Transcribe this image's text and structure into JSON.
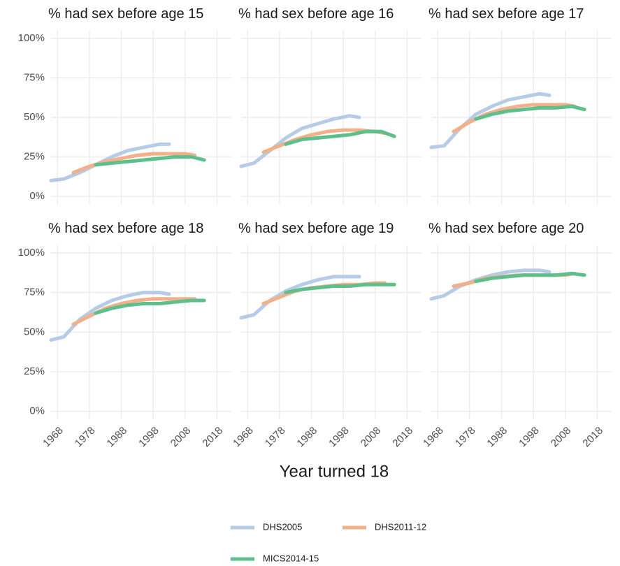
{
  "x_label": "Year turned 18",
  "chart_data": [
    {
      "type": "line",
      "title": "% had sex before age 15",
      "xlim": [
        1966,
        2022.5
      ],
      "xticks": [
        1968,
        1978,
        1988,
        1998,
        2008,
        2018
      ],
      "ylim": [
        -5,
        105
      ],
      "yticks": [
        {
          "value": 0,
          "label": "0%"
        },
        {
          "value": 25,
          "label": "25%"
        },
        {
          "value": 50,
          "label": "50%"
        },
        {
          "value": 75,
          "label": "75%"
        },
        {
          "value": 100,
          "label": "100%"
        }
      ],
      "grid": true,
      "series": [
        {
          "name": "DHS2005",
          "color": "#b5cbe6",
          "x": [
            1966,
            1970,
            1975,
            1980,
            1985,
            1990,
            1995,
            2000,
            2003
          ],
          "values": [
            10,
            11,
            15,
            20,
            25,
            29,
            31,
            33,
            33
          ]
        },
        {
          "name": "DHS2011-12",
          "color": "#f2b08a",
          "x": [
            1973,
            1978,
            1983,
            1988,
            1993,
            1998,
            2003,
            2008,
            2011
          ],
          "values": [
            15,
            19,
            22,
            24,
            26,
            27,
            27,
            27,
            26
          ]
        },
        {
          "name": "MICS2014-15",
          "color": "#5cbf8c",
          "x": [
            1980,
            1985,
            1990,
            1995,
            2000,
            2005,
            2010,
            2014
          ],
          "values": [
            20,
            21,
            22,
            23,
            24,
            25,
            25,
            23
          ]
        }
      ]
    },
    {
      "type": "line",
      "title": "% had sex before age 16",
      "xlim": [
        1966,
        2022.5
      ],
      "xticks": [
        1968,
        1978,
        1988,
        1998,
        2008,
        2018
      ],
      "ylim": [
        -5,
        105
      ],
      "yticks": [
        0,
        25,
        50,
        75,
        100
      ],
      "grid": true,
      "series": [
        {
          "name": "DHS2005",
          "color": "#b5cbe6",
          "x": [
            1966,
            1970,
            1975,
            1980,
            1985,
            1990,
            1995,
            2000,
            2003
          ],
          "values": [
            19,
            21,
            29,
            37,
            43,
            46,
            49,
            51,
            50
          ]
        },
        {
          "name": "DHS2011-12",
          "color": "#f2b08a",
          "x": [
            1973,
            1978,
            1983,
            1988,
            1993,
            1998,
            2003,
            2008,
            2011
          ],
          "values": [
            28,
            32,
            36,
            39,
            41,
            42,
            42,
            41,
            40
          ]
        },
        {
          "name": "MICS2014-15",
          "color": "#5cbf8c",
          "x": [
            1980,
            1985,
            1990,
            1995,
            2000,
            2005,
            2010,
            2014
          ],
          "values": [
            33,
            36,
            37,
            38,
            39,
            41,
            41,
            38
          ]
        }
      ]
    },
    {
      "type": "line",
      "title": "% had sex before age 17",
      "xlim": [
        1966,
        2022.5
      ],
      "xticks": [
        1968,
        1978,
        1988,
        1998,
        2008,
        2018
      ],
      "ylim": [
        -5,
        105
      ],
      "yticks": [
        0,
        25,
        50,
        75,
        100
      ],
      "grid": true,
      "series": [
        {
          "name": "DHS2005",
          "color": "#b5cbe6",
          "x": [
            1966,
            1970,
            1975,
            1980,
            1985,
            1990,
            1995,
            2000,
            2003
          ],
          "values": [
            31,
            32,
            43,
            52,
            57,
            61,
            63,
            65,
            64
          ]
        },
        {
          "name": "DHS2011-12",
          "color": "#f2b08a",
          "x": [
            1973,
            1978,
            1983,
            1988,
            1993,
            1998,
            2003,
            2008,
            2011
          ],
          "values": [
            41,
            47,
            52,
            55,
            57,
            58,
            58,
            58,
            57
          ]
        },
        {
          "name": "MICS2014-15",
          "color": "#5cbf8c",
          "x": [
            1980,
            1985,
            1990,
            1995,
            2000,
            2005,
            2010,
            2014
          ],
          "values": [
            49,
            52,
            54,
            55,
            56,
            56,
            57,
            55
          ]
        }
      ]
    },
    {
      "type": "line",
      "title": "% had sex before age 18",
      "xlim": [
        1966,
        2022.5
      ],
      "xticks": [
        1968,
        1978,
        1988,
        1998,
        2008,
        2018
      ],
      "ylim": [
        -5,
        105
      ],
      "yticks": [
        {
          "value": 0,
          "label": "0%"
        },
        {
          "value": 25,
          "label": "25%"
        },
        {
          "value": 50,
          "label": "50%"
        },
        {
          "value": 75,
          "label": "75%"
        },
        {
          "value": 100,
          "label": "100%"
        }
      ],
      "grid": true,
      "series": [
        {
          "name": "DHS2005",
          "color": "#b5cbe6",
          "x": [
            1966,
            1970,
            1975,
            1980,
            1985,
            1990,
            1995,
            2000,
            2003
          ],
          "values": [
            45,
            47,
            58,
            65,
            70,
            73,
            75,
            75,
            74
          ]
        },
        {
          "name": "DHS2011-12",
          "color": "#f2b08a",
          "x": [
            1973,
            1978,
            1983,
            1988,
            1993,
            1998,
            2003,
            2008,
            2011
          ],
          "values": [
            55,
            60,
            65,
            68,
            70,
            71,
            71,
            71,
            71
          ]
        },
        {
          "name": "MICS2014-15",
          "color": "#5cbf8c",
          "x": [
            1980,
            1985,
            1990,
            1995,
            2000,
            2005,
            2010,
            2014
          ],
          "values": [
            62,
            65,
            67,
            68,
            68,
            69,
            70,
            70
          ]
        }
      ]
    },
    {
      "type": "line",
      "title": "% had sex before age 19",
      "xlim": [
        1966,
        2022.5
      ],
      "xticks": [
        1968,
        1978,
        1988,
        1998,
        2008,
        2018
      ],
      "ylim": [
        -5,
        105
      ],
      "yticks": [
        0,
        25,
        50,
        75,
        100
      ],
      "grid": true,
      "series": [
        {
          "name": "DHS2005",
          "color": "#b5cbe6",
          "x": [
            1966,
            1970,
            1975,
            1980,
            1985,
            1990,
            1995,
            2000,
            2003
          ],
          "values": [
            59,
            61,
            70,
            76,
            80,
            83,
            85,
            85,
            85
          ]
        },
        {
          "name": "DHS2011-12",
          "color": "#f2b08a",
          "x": [
            1973,
            1978,
            1983,
            1988,
            1993,
            1998,
            2003,
            2008,
            2011
          ],
          "values": [
            68,
            72,
            76,
            78,
            79,
            80,
            80,
            81,
            81
          ]
        },
        {
          "name": "MICS2014-15",
          "color": "#5cbf8c",
          "x": [
            1980,
            1985,
            1990,
            1995,
            2000,
            2005,
            2010,
            2014
          ],
          "values": [
            75,
            77,
            78,
            79,
            79,
            80,
            80,
            80
          ]
        }
      ]
    },
    {
      "type": "line",
      "title": "% had sex before age 20",
      "xlim": [
        1966,
        2022.5
      ],
      "xticks": [
        1968,
        1978,
        1988,
        1998,
        2008,
        2018
      ],
      "ylim": [
        -5,
        105
      ],
      "yticks": [
        0,
        25,
        50,
        75,
        100
      ],
      "grid": true,
      "series": [
        {
          "name": "DHS2005",
          "color": "#b5cbe6",
          "x": [
            1966,
            1970,
            1975,
            1980,
            1985,
            1990,
            1995,
            2000,
            2003
          ],
          "values": [
            71,
            73,
            79,
            83,
            86,
            88,
            89,
            89,
            88
          ]
        },
        {
          "name": "DHS2011-12",
          "color": "#f2b08a",
          "x": [
            1973,
            1978,
            1983,
            1988,
            1993,
            1998,
            2003,
            2008,
            2011
          ],
          "values": [
            79,
            81,
            84,
            85,
            86,
            86,
            86,
            86,
            87
          ]
        },
        {
          "name": "MICS2014-15",
          "color": "#5cbf8c",
          "x": [
            1980,
            1985,
            1990,
            1995,
            2000,
            2005,
            2010,
            2014
          ],
          "values": [
            82,
            84,
            85,
            86,
            86,
            86,
            87,
            86
          ]
        }
      ]
    }
  ]
}
